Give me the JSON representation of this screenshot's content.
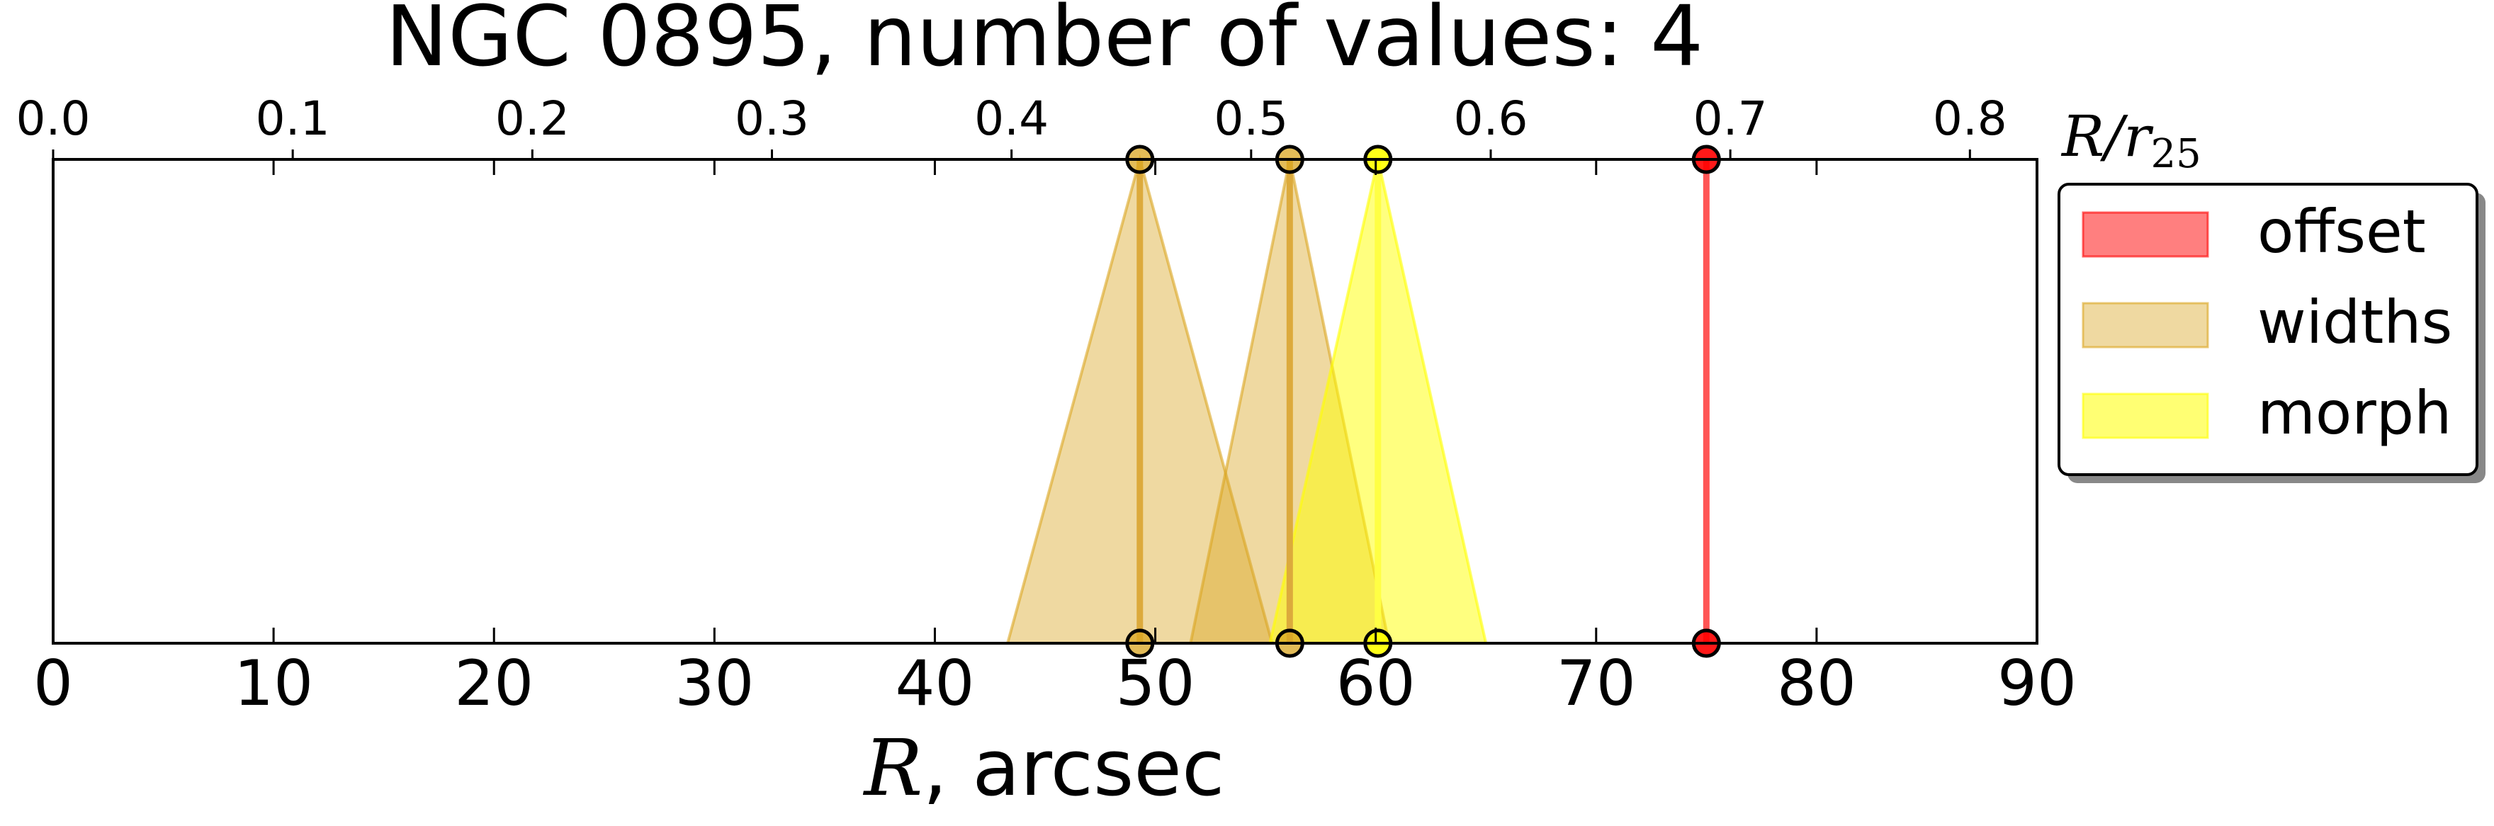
{
  "chart_data": {
    "type": "range-markers",
    "title": "NGC 0895, number of values: 4",
    "xlabel_var": "R",
    "xlabel_rest": ", arcsec",
    "top_axis_label": "R/r25",
    "top_axis_label_main": "R/r",
    "top_axis_label_sub": "25",
    "xlim": [
      0,
      90
    ],
    "xticks": [
      "0",
      "10",
      "20",
      "30",
      "40",
      "50",
      "60",
      "70",
      "80",
      "90"
    ],
    "top_xlim": [
      0.0,
      0.828
    ],
    "top_xticks": [
      "0.0",
      "0.1",
      "0.2",
      "0.3",
      "0.4",
      "0.5",
      "0.6",
      "0.7",
      "0.8"
    ],
    "legend_position": "right",
    "series": [
      {
        "name": "offset",
        "color": "#ff0000",
        "markers": [
          {
            "center": 75.0
          }
        ]
      },
      {
        "name": "widths",
        "color": "#daa520",
        "markers": [
          {
            "center": 49.3,
            "low": 43.3,
            "high": 55.3
          },
          {
            "center": 56.1,
            "low": 51.6,
            "high": 60.6
          }
        ]
      },
      {
        "name": "morph",
        "color": "#ffff00",
        "markers": [
          {
            "center": 60.1,
            "low": 55.2,
            "high": 65.0
          }
        ]
      }
    ]
  }
}
